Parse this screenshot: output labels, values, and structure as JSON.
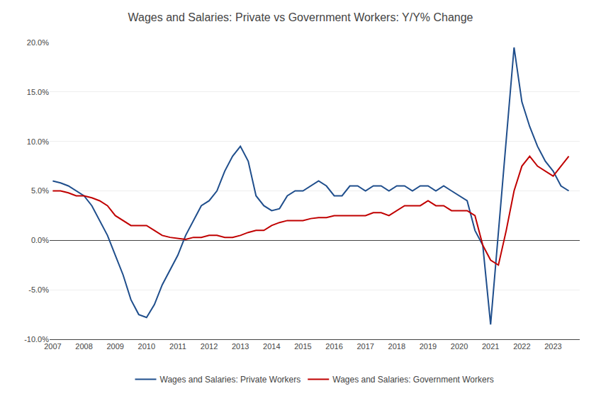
{
  "chart_data": {
    "type": "line",
    "title": "Wages and Salaries: Private vs Government Workers: Y/Y% Change",
    "x": [
      2007.0,
      2007.25,
      2007.5,
      2007.75,
      2008.0,
      2008.25,
      2008.5,
      2008.75,
      2009.0,
      2009.25,
      2009.5,
      2009.75,
      2010.0,
      2010.25,
      2010.5,
      2010.75,
      2011.0,
      2011.25,
      2011.5,
      2011.75,
      2012.0,
      2012.25,
      2012.5,
      2012.75,
      2013.0,
      2013.25,
      2013.5,
      2013.75,
      2014.0,
      2014.25,
      2014.5,
      2014.75,
      2015.0,
      2015.25,
      2015.5,
      2015.75,
      2016.0,
      2016.25,
      2016.5,
      2016.75,
      2017.0,
      2017.25,
      2017.5,
      2017.75,
      2018.0,
      2018.25,
      2018.5,
      2018.75,
      2019.0,
      2019.25,
      2019.5,
      2019.75,
      2020.0,
      2020.25,
      2020.5,
      2020.75,
      2021.0,
      2021.25,
      2021.5,
      2021.75,
      2022.0,
      2022.25,
      2022.5,
      2022.75,
      2023.0,
      2023.25,
      2023.5
    ],
    "series": [
      {
        "name": "Wages and Salaries: Private Workers",
        "color": "#1f4e8c",
        "values": [
          6.0,
          5.8,
          5.5,
          5.0,
          4.5,
          3.5,
          2.0,
          0.5,
          -1.5,
          -3.5,
          -6.0,
          -7.5,
          -7.8,
          -6.5,
          -4.5,
          -3.0,
          -1.5,
          0.5,
          2.0,
          3.5,
          4.0,
          5.0,
          7.0,
          8.5,
          9.5,
          8.0,
          4.5,
          3.5,
          3.0,
          3.2,
          4.5,
          5.0,
          5.0,
          5.5,
          6.0,
          5.5,
          4.5,
          4.5,
          5.5,
          5.5,
          5.0,
          5.5,
          5.5,
          5.0,
          5.5,
          5.5,
          5.0,
          5.5,
          5.5,
          5.0,
          5.5,
          5.0,
          4.5,
          4.0,
          1.0,
          -0.5,
          -8.5,
          1.0,
          10.0,
          19.5,
          14.0,
          11.5,
          9.5,
          8.0,
          7.0,
          5.5,
          5.0
        ]
      },
      {
        "name": "Wages and Salaries: Government Workers",
        "color": "#c00000",
        "values": [
          5.0,
          5.0,
          4.8,
          4.5,
          4.5,
          4.3,
          4.0,
          3.5,
          2.5,
          2.0,
          1.5,
          1.5,
          1.5,
          1.0,
          0.5,
          0.3,
          0.2,
          0.1,
          0.3,
          0.3,
          0.5,
          0.5,
          0.3,
          0.3,
          0.5,
          0.8,
          1.0,
          1.0,
          1.5,
          1.8,
          2.0,
          2.0,
          2.0,
          2.2,
          2.3,
          2.3,
          2.5,
          2.5,
          2.5,
          2.5,
          2.5,
          2.8,
          2.8,
          2.5,
          3.0,
          3.5,
          3.5,
          3.5,
          4.0,
          3.5,
          3.5,
          3.0,
          3.0,
          3.0,
          2.5,
          -0.5,
          -2.0,
          -2.5,
          1.0,
          5.0,
          7.5,
          8.5,
          7.5,
          7.0,
          6.5,
          7.5,
          8.5
        ]
      }
    ],
    "xlim": [
      2006.9,
      2023.85
    ],
    "xticks": [
      2007,
      2008,
      2009,
      2010,
      2011,
      2012,
      2013,
      2014,
      2015,
      2016,
      2017,
      2018,
      2019,
      2020,
      2021,
      2022,
      2023
    ],
    "ylim": [
      -10.0,
      20.0
    ],
    "yticks": [
      {
        "value": -10.0,
        "label": "-10.0%"
      },
      {
        "value": -5.0,
        "label": "-5.0%"
      },
      {
        "value": 0.0,
        "label": "0.0%"
      },
      {
        "value": 5.0,
        "label": "5.0%"
      },
      {
        "value": 10.0,
        "label": "10.0%"
      },
      {
        "value": 15.0,
        "label": "15.0%"
      },
      {
        "value": 20.0,
        "label": "20.0%"
      }
    ],
    "grid": true,
    "legend": "bottom"
  }
}
